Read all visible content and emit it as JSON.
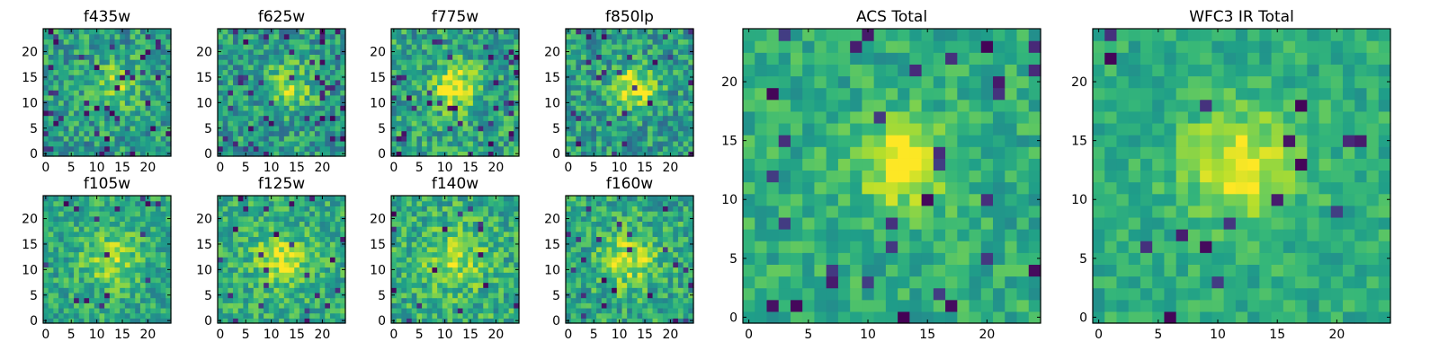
{
  "chart_data": [
    {
      "type": "heatmap",
      "title": "f435w",
      "xlim": [
        0,
        24
      ],
      "ylim": [
        0,
        24
      ],
      "xticks": [
        0,
        5,
        10,
        15,
        20
      ],
      "yticks": [
        0,
        5,
        10,
        15,
        20
      ],
      "grid": false,
      "colormap": "viridis",
      "seed": 11,
      "blob": {
        "x": 14,
        "y": 14,
        "strength": 0.25,
        "radius": 3.2
      },
      "noise": 0.22,
      "base": 0.55,
      "dark_frac": 0.06
    },
    {
      "type": "heatmap",
      "title": "f625w",
      "xlim": [
        0,
        24
      ],
      "ylim": [
        0,
        24
      ],
      "xticks": [
        0,
        5,
        10,
        15,
        20
      ],
      "yticks": [
        0,
        5,
        10,
        15,
        20
      ],
      "grid": false,
      "colormap": "viridis",
      "seed": 23,
      "blob": {
        "x": 13,
        "y": 13,
        "strength": 0.3,
        "radius": 3.2
      },
      "noise": 0.22,
      "base": 0.55,
      "dark_frac": 0.07
    },
    {
      "type": "heatmap",
      "title": "f775w",
      "xlim": [
        0,
        24
      ],
      "ylim": [
        0,
        24
      ],
      "xticks": [
        0,
        5,
        10,
        15,
        20
      ],
      "yticks": [
        0,
        5,
        10,
        15,
        20
      ],
      "grid": false,
      "colormap": "viridis",
      "seed": 37,
      "blob": {
        "x": 12,
        "y": 13,
        "strength": 0.4,
        "radius": 3.0
      },
      "noise": 0.22,
      "base": 0.58,
      "dark_frac": 0.06
    },
    {
      "type": "heatmap",
      "title": "f850lp",
      "xlim": [
        0,
        24
      ],
      "ylim": [
        0,
        24
      ],
      "xticks": [
        0,
        5,
        10,
        15,
        20
      ],
      "yticks": [
        0,
        5,
        10,
        15,
        20
      ],
      "grid": false,
      "colormap": "viridis",
      "seed": 41,
      "blob": {
        "x": 13,
        "y": 13,
        "strength": 0.45,
        "radius": 2.8
      },
      "noise": 0.22,
      "base": 0.55,
      "dark_frac": 0.06
    },
    {
      "type": "heatmap",
      "title": "f105w",
      "xlim": [
        0,
        24
      ],
      "ylim": [
        0,
        24
      ],
      "xticks": [
        0,
        5,
        10,
        15,
        20
      ],
      "yticks": [
        0,
        5,
        10,
        15,
        20
      ],
      "grid": false,
      "colormap": "viridis",
      "seed": 53,
      "blob": {
        "x": 13,
        "y": 12,
        "strength": 0.25,
        "radius": 4.0
      },
      "noise": 0.18,
      "base": 0.6,
      "dark_frac": 0.03
    },
    {
      "type": "heatmap",
      "title": "f125w",
      "xlim": [
        0,
        24
      ],
      "ylim": [
        0,
        24
      ],
      "xticks": [
        0,
        5,
        10,
        15,
        20
      ],
      "yticks": [
        0,
        5,
        10,
        15,
        20
      ],
      "grid": false,
      "colormap": "viridis",
      "seed": 67,
      "blob": {
        "x": 12,
        "y": 12,
        "strength": 0.3,
        "radius": 3.6
      },
      "noise": 0.18,
      "base": 0.62,
      "dark_frac": 0.03
    },
    {
      "type": "heatmap",
      "title": "f140w",
      "xlim": [
        0,
        24
      ],
      "ylim": [
        0,
        24
      ],
      "xticks": [
        0,
        5,
        10,
        15,
        20
      ],
      "yticks": [
        0,
        5,
        10,
        15,
        20
      ],
      "grid": false,
      "colormap": "viridis",
      "seed": 79,
      "blob": {
        "x": 12,
        "y": 12,
        "strength": 0.25,
        "radius": 4.0
      },
      "noise": 0.2,
      "base": 0.62,
      "dark_frac": 0.03
    },
    {
      "type": "heatmap",
      "title": "f160w",
      "xlim": [
        0,
        24
      ],
      "ylim": [
        0,
        24
      ],
      "xticks": [
        0,
        5,
        10,
        15,
        20
      ],
      "yticks": [
        0,
        5,
        10,
        15,
        20
      ],
      "grid": false,
      "colormap": "viridis",
      "seed": 83,
      "blob": {
        "x": 12,
        "y": 12,
        "strength": 0.32,
        "radius": 3.6
      },
      "noise": 0.2,
      "base": 0.6,
      "dark_frac": 0.04
    },
    {
      "type": "heatmap",
      "title": "ACS Total",
      "xlim": [
        0,
        24
      ],
      "ylim": [
        0,
        24
      ],
      "xticks": [
        0,
        5,
        10,
        15,
        20
      ],
      "yticks": [
        0,
        5,
        10,
        15,
        20
      ],
      "grid": false,
      "colormap": "viridis",
      "seed": 97,
      "blob": {
        "x": 13,
        "y": 13,
        "strength": 0.4,
        "radius": 2.6
      },
      "noise": 0.14,
      "base": 0.62,
      "dark_frac": 0.05
    },
    {
      "type": "heatmap",
      "title": "WFC3 IR Total",
      "xlim": [
        0,
        24
      ],
      "ylim": [
        0,
        24
      ],
      "xticks": [
        0,
        5,
        10,
        15,
        20
      ],
      "yticks": [
        0,
        5,
        10,
        15,
        20
      ],
      "grid": false,
      "colormap": "viridis",
      "seed": 101,
      "blob": {
        "x": 12,
        "y": 13,
        "strength": 0.35,
        "radius": 3.4
      },
      "noise": 0.12,
      "base": 0.62,
      "dark_frac": 0.02
    }
  ]
}
